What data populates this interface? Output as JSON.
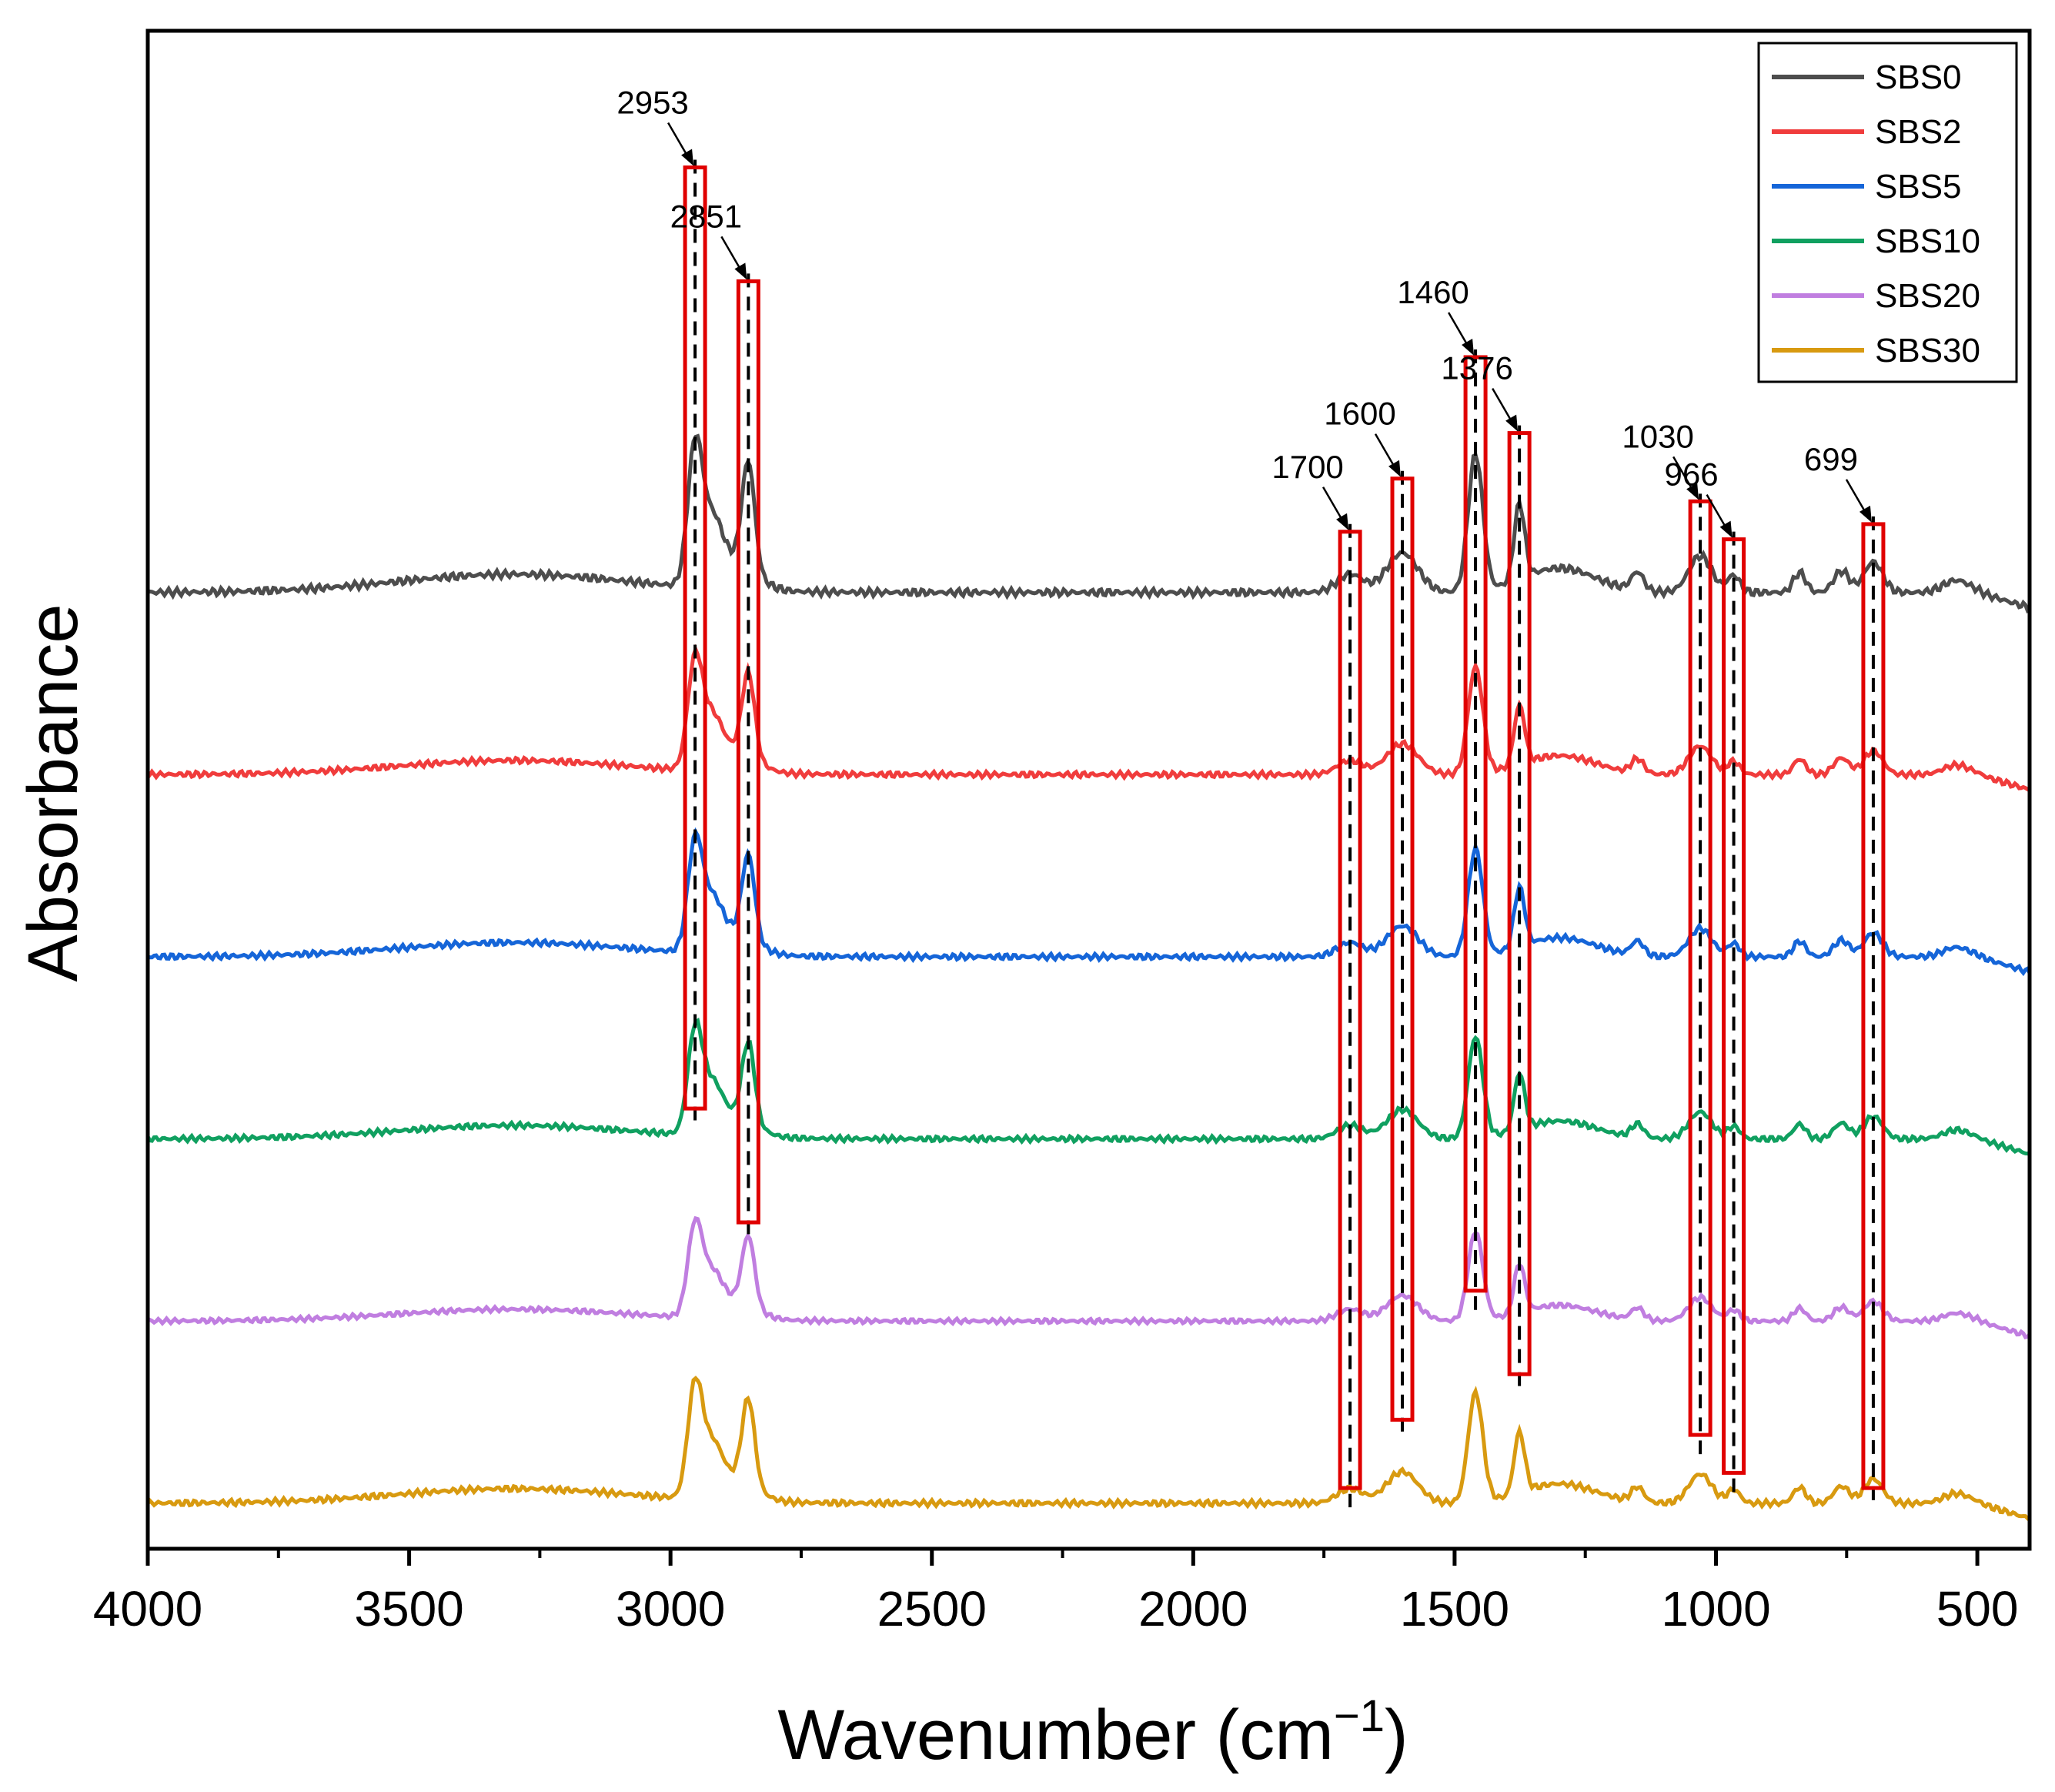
{
  "chart_data": {
    "type": "line",
    "title": "",
    "xlabel_main": "Wavenumber (cm",
    "xlabel_sup": "−1",
    "xlabel_close": ")",
    "ylabel": "Absorbance",
    "xlim": [
      4000,
      400
    ],
    "ylim": [
      0,
      100
    ],
    "x_ticks": [
      "4000",
      "3500",
      "3000",
      "2500",
      "2000",
      "1500",
      "1000",
      "500"
    ],
    "x_tick_values": [
      4000,
      3500,
      3000,
      2500,
      2000,
      1500,
      1000,
      500
    ],
    "series": [
      {
        "name": "SBS0",
        "color": "#4d4d4d",
        "offset": 63,
        "scale": 1.0
      },
      {
        "name": "SBS2",
        "color": "#f03c3c",
        "offset": 51,
        "scale": 0.78
      },
      {
        "name": "SBS5",
        "color": "#1565d8",
        "offset": 39,
        "scale": 0.78
      },
      {
        "name": "SBS10",
        "color": "#10a060",
        "offset": 27,
        "scale": 0.74
      },
      {
        "name": "SBS20",
        "color": "#c07ee0",
        "offset": 15,
        "scale": 0.65
      },
      {
        "name": "SBS30",
        "color": "#d89a10",
        "offset": 3,
        "scale": 0.8
      }
    ],
    "peaks": [
      {
        "label": "2953",
        "wavenumber": 2953,
        "box_top": 91,
        "box_bottom": 29
      },
      {
        "label": "2851",
        "wavenumber": 2851,
        "box_top": 83.5,
        "box_bottom": 21.5
      },
      {
        "label": "1700",
        "wavenumber": 1700,
        "box_top": 67,
        "box_bottom": 4
      },
      {
        "label": "1600",
        "wavenumber": 1600,
        "box_top": 70.5,
        "box_bottom": 8.5
      },
      {
        "label": "1460",
        "wavenumber": 1460,
        "box_top": 78.5,
        "box_bottom": 17
      },
      {
        "label": "1376",
        "wavenumber": 1376,
        "box_top": 73.5,
        "box_bottom": 11.5
      },
      {
        "label": "1030",
        "wavenumber": 1030,
        "box_top": 69,
        "box_bottom": 7.5
      },
      {
        "label": "966",
        "wavenumber": 966,
        "box_top": 66.5,
        "box_bottom": 5
      },
      {
        "label": "699",
        "wavenumber": 699,
        "box_top": 67.5,
        "box_bottom": 4
      }
    ],
    "legend_position": "top-right",
    "box_color": "#e00000"
  }
}
